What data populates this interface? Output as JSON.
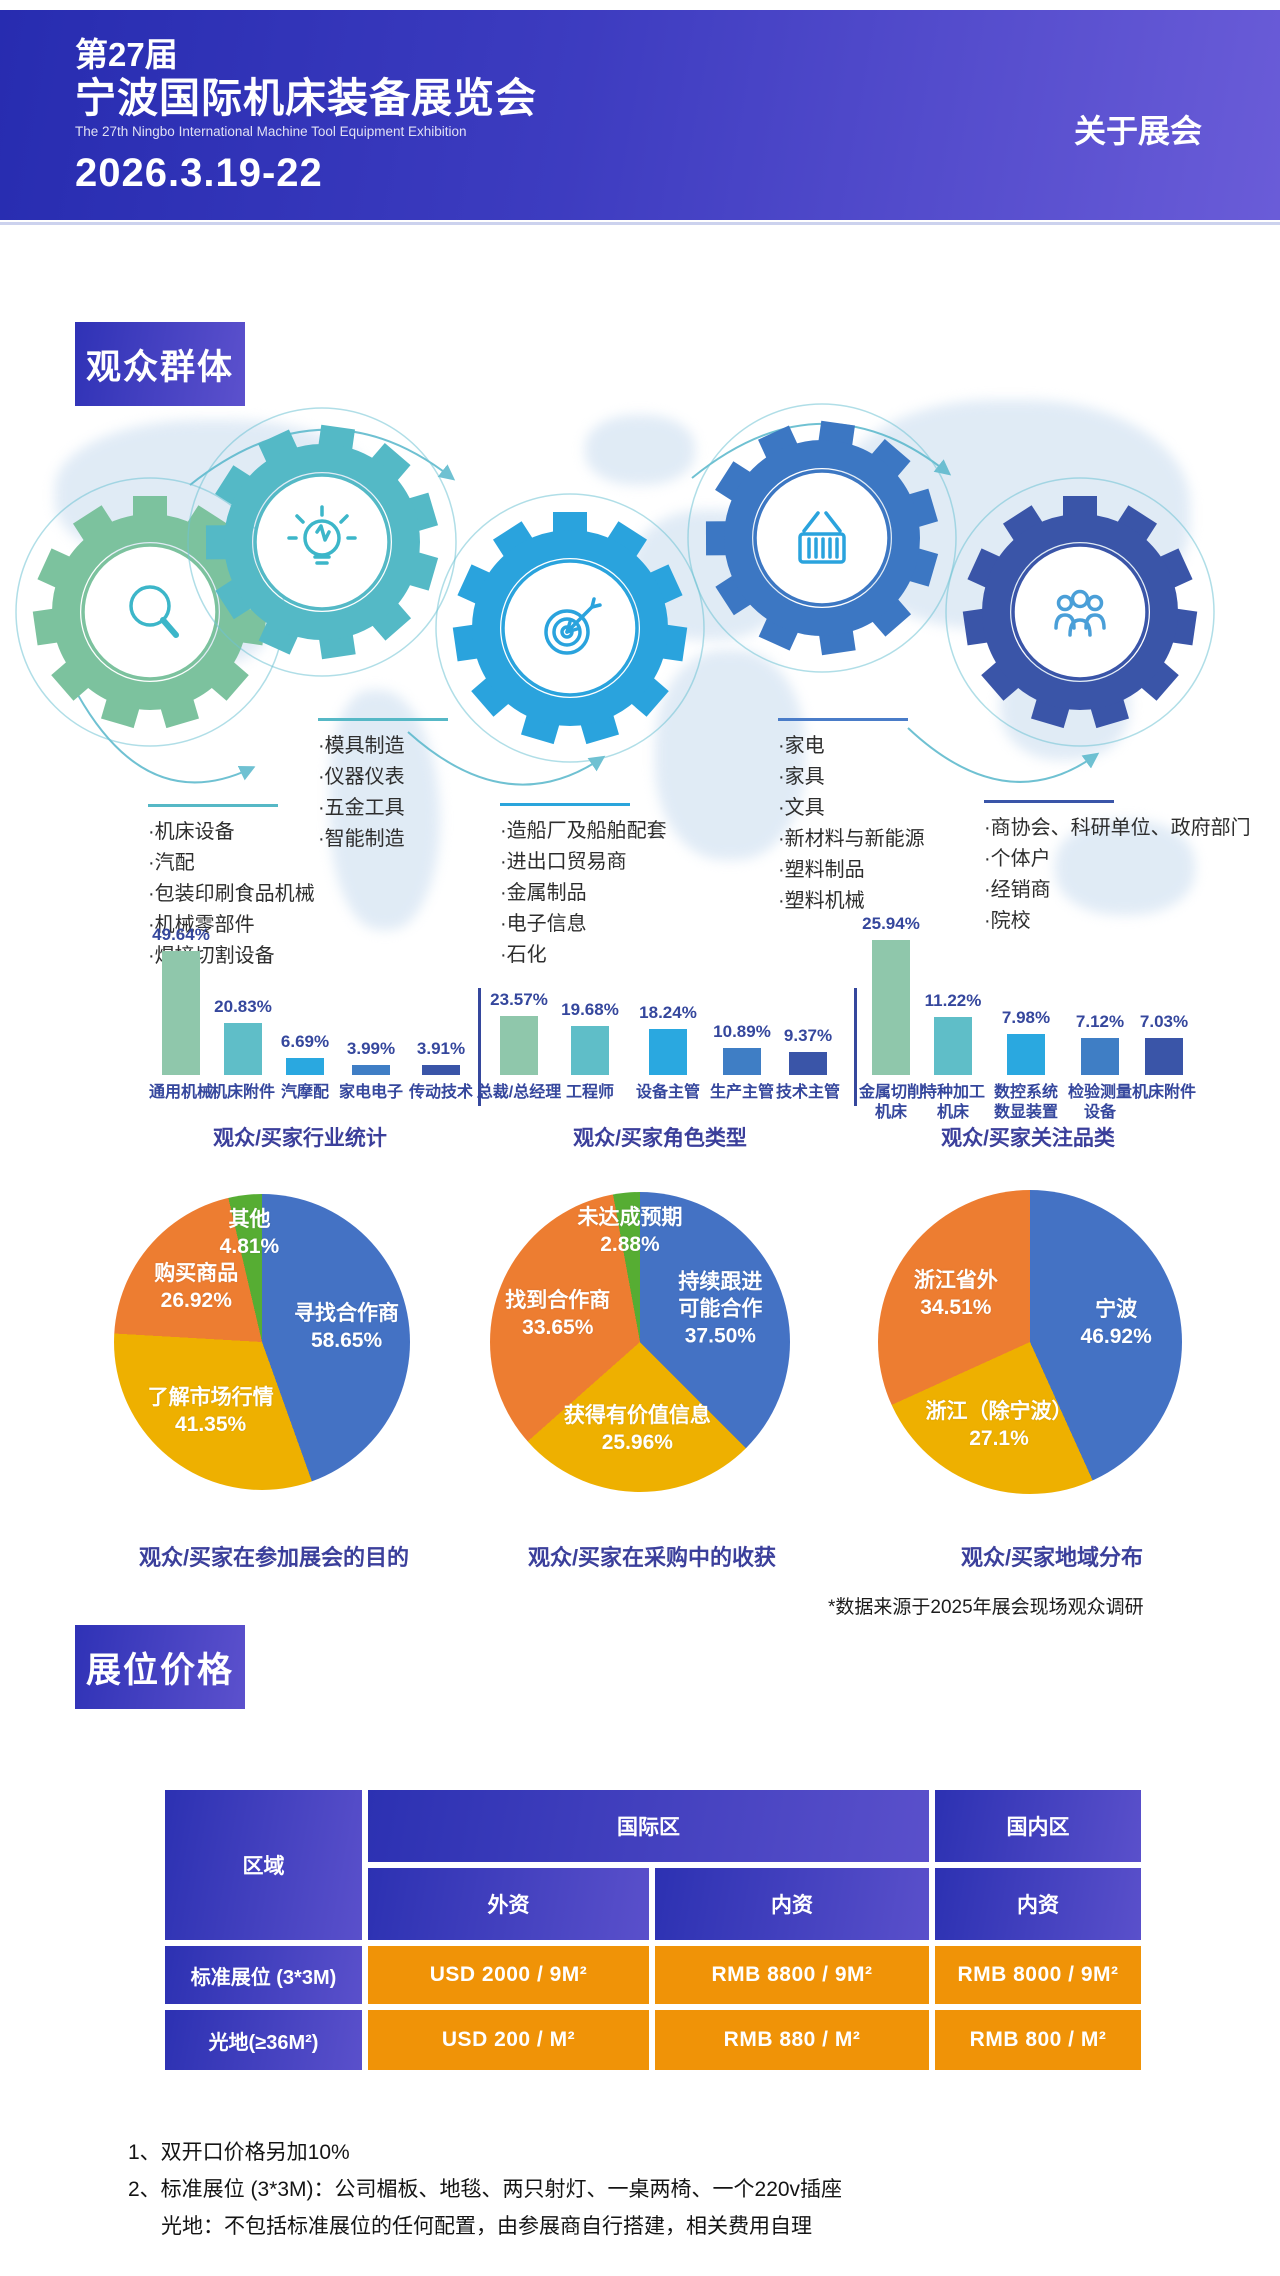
{
  "header": {
    "edition": "第27届",
    "title": "宁波国际机床装备展览会",
    "subtitle_en": "The 27th Ningbo International Machine Tool Equipment Exhibition",
    "date": "2026.3.19-22",
    "nav_about": "关于展会"
  },
  "sections": {
    "audience": "观众群体",
    "pricing": "展位价格"
  },
  "gears": [
    {
      "icon": "magnifier-icon",
      "color": "#7cc29e",
      "icon_color": "#3cb6c9"
    },
    {
      "icon": "bulb-icon",
      "color": "#54b9c6",
      "icon_color": "#3cb6c9"
    },
    {
      "icon": "target-icon",
      "color": "#2aa3dd",
      "icon_color": "#2aa3dd"
    },
    {
      "icon": "basket-icon",
      "color": "#3c77c3",
      "icon_color": "#2aa3dd"
    },
    {
      "icon": "people-icon",
      "color": "#3a55a8",
      "icon_color": "#4a9fd8"
    }
  ],
  "visitor_groups": [
    {
      "items": [
        "机床设备",
        "汽配",
        "包装印刷食品机械",
        "机械零部件",
        "焊接切割设备"
      ]
    },
    {
      "items": [
        "模具制造",
        "仪器仪表",
        "五金工具",
        "智能制造"
      ]
    },
    {
      "items": [
        "造船厂及船舶配套",
        "进出口贸易商",
        "金属制品",
        "电子信息",
        "石化"
      ]
    },
    {
      "items": [
        "家电",
        "家具",
        "文具",
        "新材料与新能源",
        "塑料制品",
        "塑料机械"
      ]
    },
    {
      "items": [
        "商协会、科研单位、政府部门",
        "个体户",
        "经销商",
        "院校"
      ]
    }
  ],
  "chart_data": [
    {
      "type": "bar",
      "title": "观众/买家行业统计",
      "categories": [
        "通用机械",
        "机床附件",
        "汽摩配",
        "家电电子",
        "传动技术"
      ],
      "values": [
        49.64,
        20.83,
        6.69,
        3.99,
        3.91
      ],
      "value_labels": [
        "49.64%",
        "20.83%",
        "6.69%",
        "3.99%",
        "3.91%"
      ]
    },
    {
      "type": "bar",
      "title": "观众/买家角色类型",
      "categories": [
        "总裁/总经理",
        "工程师",
        "设备主管",
        "生产主管",
        "技术主管"
      ],
      "values": [
        23.57,
        19.68,
        18.24,
        10.89,
        9.37
      ],
      "value_labels": [
        "23.57%",
        "19.68%",
        "18.24%",
        "10.89%",
        "9.37%"
      ]
    },
    {
      "type": "bar",
      "title": "观众/买家关注品类",
      "categories": [
        "金属切削\n机床",
        "特种加工\n机床",
        "数控系统\n数显装置",
        "检验测量\n设备",
        "机床附件"
      ],
      "values": [
        25.94,
        11.22,
        7.98,
        7.12,
        7.03
      ],
      "value_labels": [
        "25.94%",
        "11.22%",
        "7.98%",
        "7.12%",
        "7.03%"
      ]
    },
    {
      "type": "pie",
      "title": "观众/买家在参加展会的目的",
      "slices": [
        {
          "label": "寻找合作商",
          "value": 58.65,
          "pct": "58.65%",
          "color": "#4472c4"
        },
        {
          "label": "了解市场行情",
          "value": 41.35,
          "pct": "41.35%",
          "color": "#eeb000"
        },
        {
          "label": "购买商品",
          "value": 26.92,
          "pct": "26.92%",
          "color": "#ed7d31"
        },
        {
          "label": "其他",
          "value": 4.81,
          "pct": "4.81%",
          "color": "#56ad33"
        }
      ]
    },
    {
      "type": "pie",
      "title": "观众/买家在采购中的收获",
      "slices": [
        {
          "label": "持续跟进\n可能合作",
          "value": 37.5,
          "pct": "37.50%",
          "color": "#4472c4"
        },
        {
          "label": "获得有价值信息",
          "value": 25.96,
          "pct": "25.96%",
          "color": "#eeb000"
        },
        {
          "label": "找到合作商",
          "value": 33.65,
          "pct": "33.65%",
          "color": "#ed7d31"
        },
        {
          "label": "未达成预期",
          "value": 2.88,
          "pct": "2.88%",
          "color": "#56ad33"
        }
      ]
    },
    {
      "type": "pie",
      "title": "观众/买家地域分布",
      "slices": [
        {
          "label": "宁波",
          "value": 46.92,
          "pct": "46.92%",
          "color": "#4472c4"
        },
        {
          "label": "浙江（除宁波）",
          "value": 27.1,
          "pct": "27.1%",
          "color": "#eeb000"
        },
        {
          "label": "浙江省外",
          "value": 34.51,
          "pct": "34.51%",
          "color": "#ed7d31"
        }
      ]
    }
  ],
  "source_note": "*数据来源于2025年展会现场观众调研",
  "pricing_table": {
    "corner": "区域",
    "group_headers": [
      {
        "label": "国际区",
        "span": 2
      },
      {
        "label": "国内区",
        "span": 1
      }
    ],
    "sub_headers": [
      "外资",
      "内资",
      "内资"
    ],
    "rows": [
      {
        "label": "标准展位 (3*3M)",
        "values": [
          "USD 2000 / 9M²",
          "RMB 8800 / 9M²",
          "RMB 8000 / 9M²"
        ]
      },
      {
        "label": "光地(≥36M²)",
        "values": [
          "USD 200 / M²",
          "RMB 880 / M²",
          "RMB 800 / M²"
        ]
      }
    ],
    "notes": [
      "1、双开口价格另加10%",
      "2、标准展位 (3*3M)：公司楣板、地毯、两只射灯、一桌两椅、一个220v插座",
      "光地：不包括标准展位的任何配置，由参展商自行搭建，相关费用自理"
    ]
  },
  "colors": {
    "bar_palette": [
      "#8fc7ab",
      "#5fbec8",
      "#2aa8e0",
      "#3f7ec5",
      "#3a55a8"
    ],
    "list_line_colors": [
      "#56b8c6",
      "#56b8c6",
      "#2aa5dc",
      "#4a7cc8",
      "#3a55a8"
    ],
    "header_gradient": [
      "#272cb0",
      "#6a5cd8"
    ],
    "table_blue": "#2c31b2",
    "table_orange": "#f09307",
    "accent_text": "#35479d",
    "arrow_teal": "#57b7cb",
    "map_blue": "#dde9f5"
  }
}
